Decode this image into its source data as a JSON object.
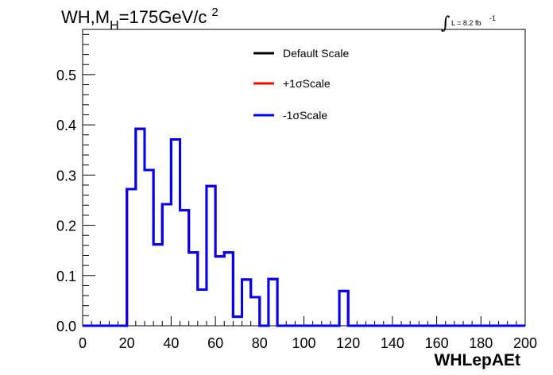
{
  "title": {
    "prefix": "WH,M",
    "sub": "H",
    "value": "=175GeV/c",
    "sup": "2"
  },
  "luminosity": {
    "symbol": "∫",
    "text": "L = 8.2 fb",
    "sup": "-1"
  },
  "chart_data": {
    "type": "line",
    "style": "step-histogram",
    "xlabel": "WHLepAEt",
    "ylabel": "",
    "xlim": [
      0,
      200
    ],
    "ylim": [
      0,
      0.59
    ],
    "x_ticks": [
      "0",
      "20",
      "40",
      "60",
      "80",
      "100",
      "120",
      "140",
      "160",
      "180",
      "200"
    ],
    "y_ticks": [
      "0.0",
      "0.1",
      "0.2",
      "0.3",
      "0.4",
      "0.5"
    ],
    "y_tick_values": [
      0,
      0.1,
      0.2,
      0.3,
      0.4,
      0.5
    ],
    "grid": false,
    "legend_placement": "top-center",
    "bin_edges": [
      0,
      4,
      8,
      12,
      16,
      20,
      24,
      28,
      32,
      36,
      40,
      44,
      48,
      52,
      56,
      60,
      64,
      68,
      72,
      76,
      80,
      84,
      88,
      92,
      96,
      100,
      104,
      108,
      112,
      116,
      120,
      124,
      128,
      132,
      136,
      140,
      144,
      148,
      152,
      156,
      160,
      164,
      168,
      172,
      176,
      180,
      184,
      188,
      192,
      196,
      200
    ],
    "series": [
      {
        "name": "Default Scale",
        "color": "#000000",
        "values": [
          0,
          0,
          0,
          0,
          0,
          0.272,
          0.392,
          0.31,
          0.162,
          0.242,
          0.371,
          0.23,
          0.146,
          0.072,
          0.278,
          0.138,
          0.146,
          0.018,
          0.092,
          0.057,
          0,
          0.093,
          0,
          0,
          0,
          0,
          0,
          0,
          0,
          0.069,
          0,
          0,
          0,
          0,
          0,
          0,
          0,
          0,
          0,
          0,
          0,
          0,
          0,
          0,
          0,
          0,
          0,
          0,
          0,
          0
        ]
      },
      {
        "name": "+1σScale",
        "color": "#ff0000",
        "values": [
          0,
          0,
          0,
          0,
          0,
          0.272,
          0.392,
          0.31,
          0.162,
          0.242,
          0.371,
          0.23,
          0.146,
          0.072,
          0.278,
          0.138,
          0.146,
          0.018,
          0.092,
          0.057,
          0,
          0.093,
          0,
          0,
          0,
          0,
          0,
          0,
          0,
          0.069,
          0,
          0,
          0,
          0,
          0,
          0,
          0,
          0,
          0,
          0,
          0,
          0,
          0,
          0,
          0,
          0,
          0,
          0,
          0,
          0
        ]
      },
      {
        "name": "-1σScale",
        "color": "#0000ff",
        "values": [
          0,
          0,
          0,
          0,
          0,
          0.272,
          0.392,
          0.31,
          0.162,
          0.242,
          0.371,
          0.23,
          0.146,
          0.072,
          0.278,
          0.138,
          0.146,
          0.018,
          0.092,
          0.057,
          0,
          0.093,
          0,
          0,
          0,
          0,
          0,
          0,
          0,
          0.069,
          0,
          0,
          0,
          0,
          0,
          0,
          0,
          0,
          0,
          0,
          0,
          0,
          0,
          0,
          0,
          0,
          0,
          0,
          0,
          0
        ]
      }
    ]
  }
}
